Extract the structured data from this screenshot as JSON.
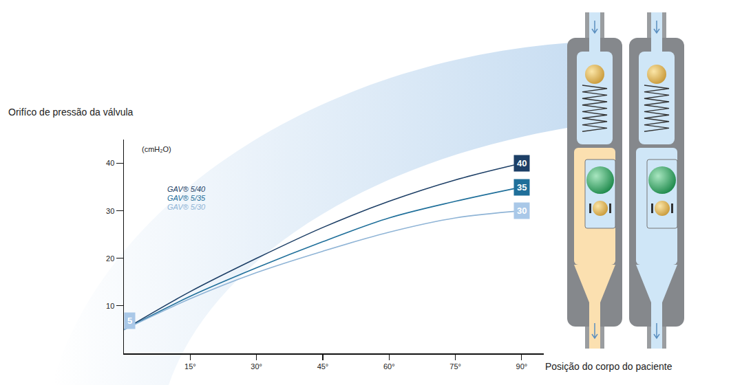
{
  "chart_data": {
    "type": "line",
    "ylabel": "Orifíco de pressão da válvula",
    "yunit": "(cmH₂O)",
    "xlabel": "Posição do corpo do paciente",
    "x": [
      0,
      15,
      30,
      45,
      60,
      75,
      90
    ],
    "series": [
      {
        "name": "GAV® 5/40",
        "color": "#1d3f66",
        "values": [
          5,
          13,
          20,
          26.5,
          32,
          36.5,
          40
        ]
      },
      {
        "name": "GAV® 5/35",
        "color": "#1f6f9a",
        "values": [
          5,
          12,
          18,
          23.5,
          28.5,
          32,
          35
        ]
      },
      {
        "name": "GAV® 5/30",
        "color": "#8fb4d6",
        "values": [
          5,
          11.5,
          17,
          21.5,
          25.5,
          28.5,
          30
        ]
      }
    ],
    "xlim": [
      0,
      95
    ],
    "xticks": [
      {
        "value": 15,
        "label": "15°"
      },
      {
        "value": 30,
        "label": "30°"
      },
      {
        "value": 45,
        "label": "45°"
      },
      {
        "value": 60,
        "label": "60°"
      },
      {
        "value": 75,
        "label": "75°"
      },
      {
        "value": 90,
        "label": "90°"
      }
    ],
    "ylim": [
      0,
      45
    ],
    "yticks": [
      10,
      20,
      30,
      40
    ],
    "grid": false,
    "legend": "upper left",
    "annotations": [
      {
        "text": "40",
        "x": 90,
        "y": 40,
        "color": "#1d3f66"
      },
      {
        "text": "35",
        "x": 90,
        "y": 35,
        "color": "#1f6f9a"
      },
      {
        "text": "30",
        "x": 90,
        "y": 30,
        "color": "#a9c8e8"
      },
      {
        "text": "5",
        "x": 0,
        "y": 5,
        "color": "#a9c8e8"
      }
    ]
  }
}
